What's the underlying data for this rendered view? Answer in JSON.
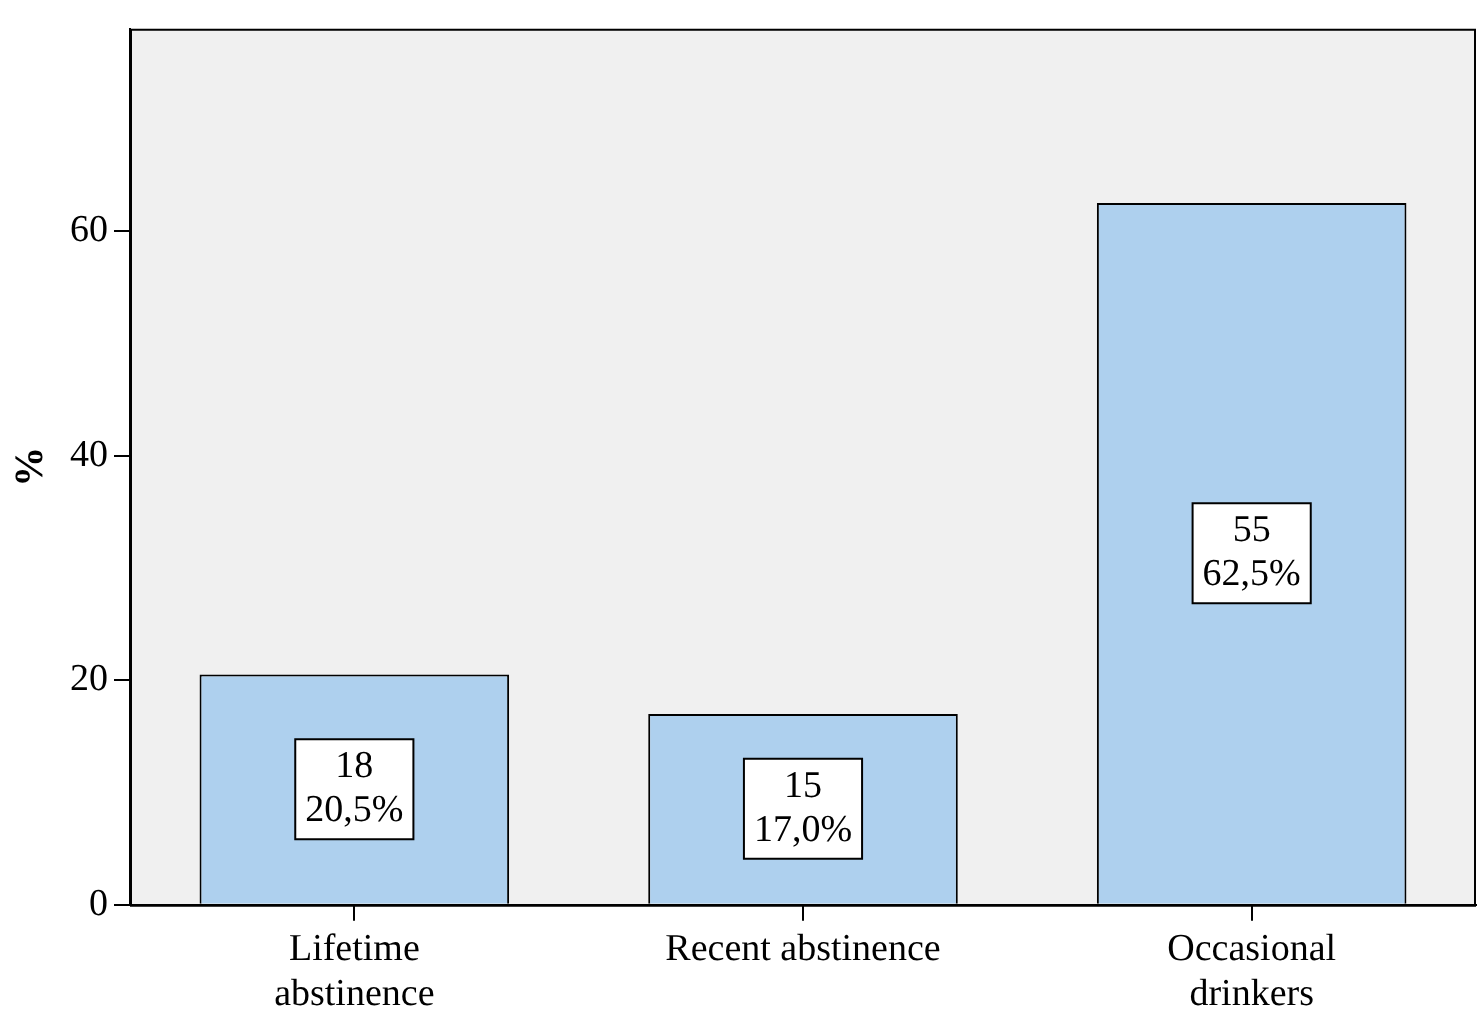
{
  "chart_data": {
    "type": "bar",
    "ylabel": "%",
    "categories": [
      "Lifetime abstinence",
      "Recent abstinence",
      "Occasional drinkers"
    ],
    "values": [
      20.5,
      17.0,
      62.5
    ],
    "value_labels": [
      "18\n20,5%",
      "15\n17,0%",
      "55\n62,5%"
    ],
    "color": "#aed0ee",
    "ylim": [
      0,
      78
    ],
    "yticks": [
      0,
      20,
      40,
      60
    ],
    "grid": false,
    "legend": false
  }
}
